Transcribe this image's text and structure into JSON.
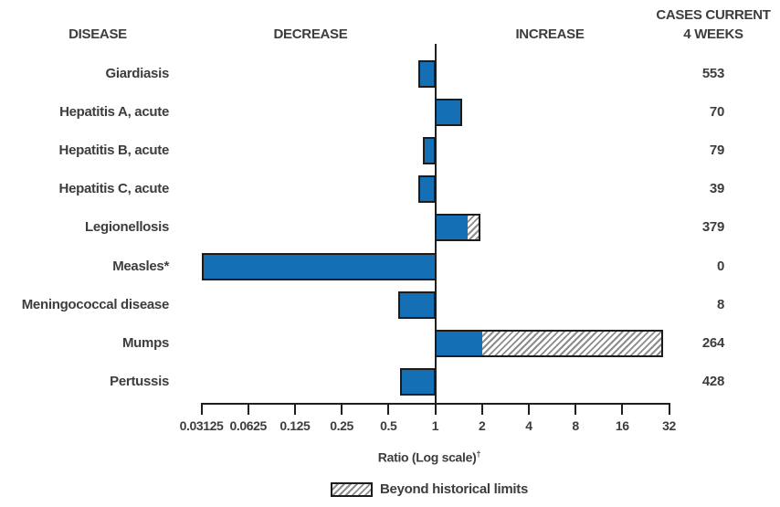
{
  "header": {
    "disease": "DISEASE",
    "decrease": "DECREASE",
    "increase": "INCREASE",
    "cases_line1": "CASES CURRENT",
    "cases_line2": "4 WEEKS"
  },
  "axis": {
    "label": "Ratio (Log scale)",
    "dagger": "†",
    "tick_labels": [
      "0.03125",
      "0.0625",
      "0.125",
      "0.25",
      "0.5",
      "1",
      "2",
      "4",
      "8",
      "16",
      "32"
    ]
  },
  "legend": {
    "label": "Beyond historical limits",
    "swatch": "hatched-box"
  },
  "colors": {
    "bar_blue": "#146fb4",
    "bar_border": "#1c1c1c",
    "text": "#3d3d3d",
    "axis": "#1f1f1f",
    "hatch_stripe": "#8c8c8c"
  },
  "chart_data": {
    "type": "bar",
    "orientation": "horizontal",
    "scale": "log2",
    "baseline": 1,
    "xlim": [
      0.03125,
      32
    ],
    "xlabel": "Ratio (Log scale)†",
    "ticks": [
      0.03125,
      0.0625,
      0.125,
      0.25,
      0.5,
      1,
      2,
      4,
      8,
      16,
      32
    ],
    "legend_position": "bottom",
    "grid": false,
    "rows": [
      {
        "disease": "Giardiasis",
        "ratio": 0.78,
        "beyond_from": null,
        "cases": "553"
      },
      {
        "disease": "Hepatitis A, acute",
        "ratio": 1.5,
        "beyond_from": null,
        "cases": "70"
      },
      {
        "disease": "Hepatitis B, acute",
        "ratio": 0.83,
        "beyond_from": null,
        "cases": "79"
      },
      {
        "disease": "Hepatitis C, acute",
        "ratio": 0.78,
        "beyond_from": null,
        "cases": "39"
      },
      {
        "disease": "Legionellosis",
        "ratio": 1.96,
        "beyond_from": 1.62,
        "cases": "379"
      },
      {
        "disease": "Measles*",
        "ratio": 0.03125,
        "beyond_from": null,
        "cases": "0"
      },
      {
        "disease": "Meningococcal disease",
        "ratio": 0.58,
        "beyond_from": null,
        "cases": "8"
      },
      {
        "disease": "Mumps",
        "ratio": 29.5,
        "beyond_from": 2.0,
        "cases": "264"
      },
      {
        "disease": "Pertussis",
        "ratio": 0.59,
        "beyond_from": null,
        "cases": "428"
      }
    ]
  }
}
